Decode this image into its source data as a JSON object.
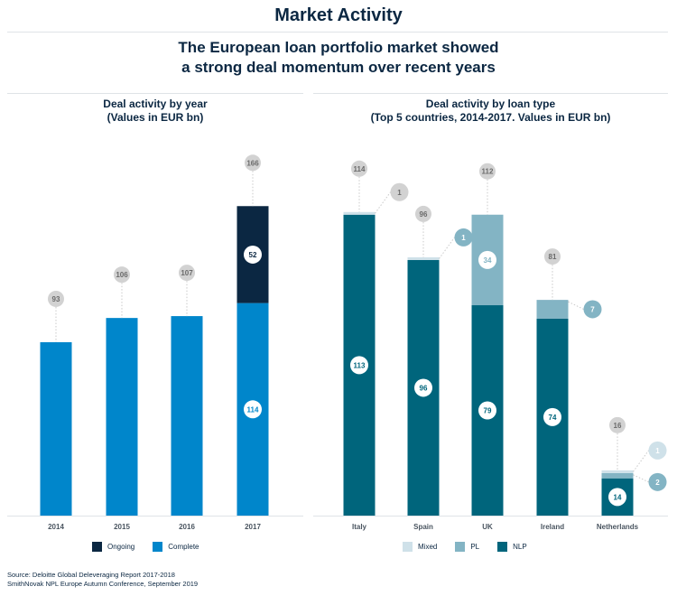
{
  "page": {
    "title": "Market Activity",
    "subtitle_line1": "The European loan portfolio market showed",
    "subtitle_line2": "a strong deal momentum over recent years",
    "source_line1": "Source: Deloitte Global Deleveraging Report 2017-2018",
    "source_line2": "SmithNovak NPL Europe Autumn Conference, September 2019"
  },
  "colors": {
    "complete": "#0086cb",
    "ongoing": "#0b2742",
    "nlp": "#00657c",
    "pl": "#83b4c4",
    "mixed": "#cfe1e9",
    "total_bubble": "#d2d2d2"
  },
  "chart_data": [
    {
      "type": "bar",
      "stacked": true,
      "title_line1": "Deal activity by year",
      "title_line2": "(Values in EUR bn)",
      "categories": [
        "2014",
        "2015",
        "2016",
        "2017"
      ],
      "series": [
        {
          "name": "Complete",
          "values": [
            93,
            106,
            107,
            114
          ]
        },
        {
          "name": "Ongoing",
          "values": [
            0,
            0,
            0,
            52
          ]
        }
      ],
      "totals": [
        93,
        106,
        107,
        166
      ],
      "segment_labels": {
        "Complete": [
          "",
          "",
          "",
          "114"
        ],
        "Ongoing": [
          "",
          "",
          "",
          "52"
        ]
      },
      "ylim": [
        0,
        170
      ],
      "legend": [
        "Ongoing",
        "Complete"
      ],
      "legend_position": "bottom"
    },
    {
      "type": "bar",
      "stacked": true,
      "title_line1": "Deal activity by loan type",
      "title_line2": "(Top 5 countries, 2014-2017. Values in EUR bn)",
      "categories": [
        "Italy",
        "Spain",
        "UK",
        "Ireland",
        "Netherlands"
      ],
      "series": [
        {
          "name": "NLP",
          "values": [
            113,
            96,
            79,
            74,
            14
          ]
        },
        {
          "name": "PL",
          "values": [
            0,
            0,
            34,
            7,
            2
          ]
        },
        {
          "name": "Mixed",
          "values": [
            1,
            1,
            0,
            0,
            1
          ]
        }
      ],
      "totals": [
        114,
        96,
        112,
        81,
        16
      ],
      "segment_labels": {
        "NLP": [
          "113",
          "96",
          "79",
          "74",
          "14"
        ],
        "PL": [
          "",
          "",
          "34",
          "7",
          "2"
        ],
        "Mixed": [
          "1",
          "1",
          "",
          "",
          "1"
        ]
      },
      "ylim": [
        0,
        118
      ],
      "legend": [
        "Mixed",
        "PL",
        "NLP"
      ],
      "legend_position": "bottom"
    }
  ]
}
